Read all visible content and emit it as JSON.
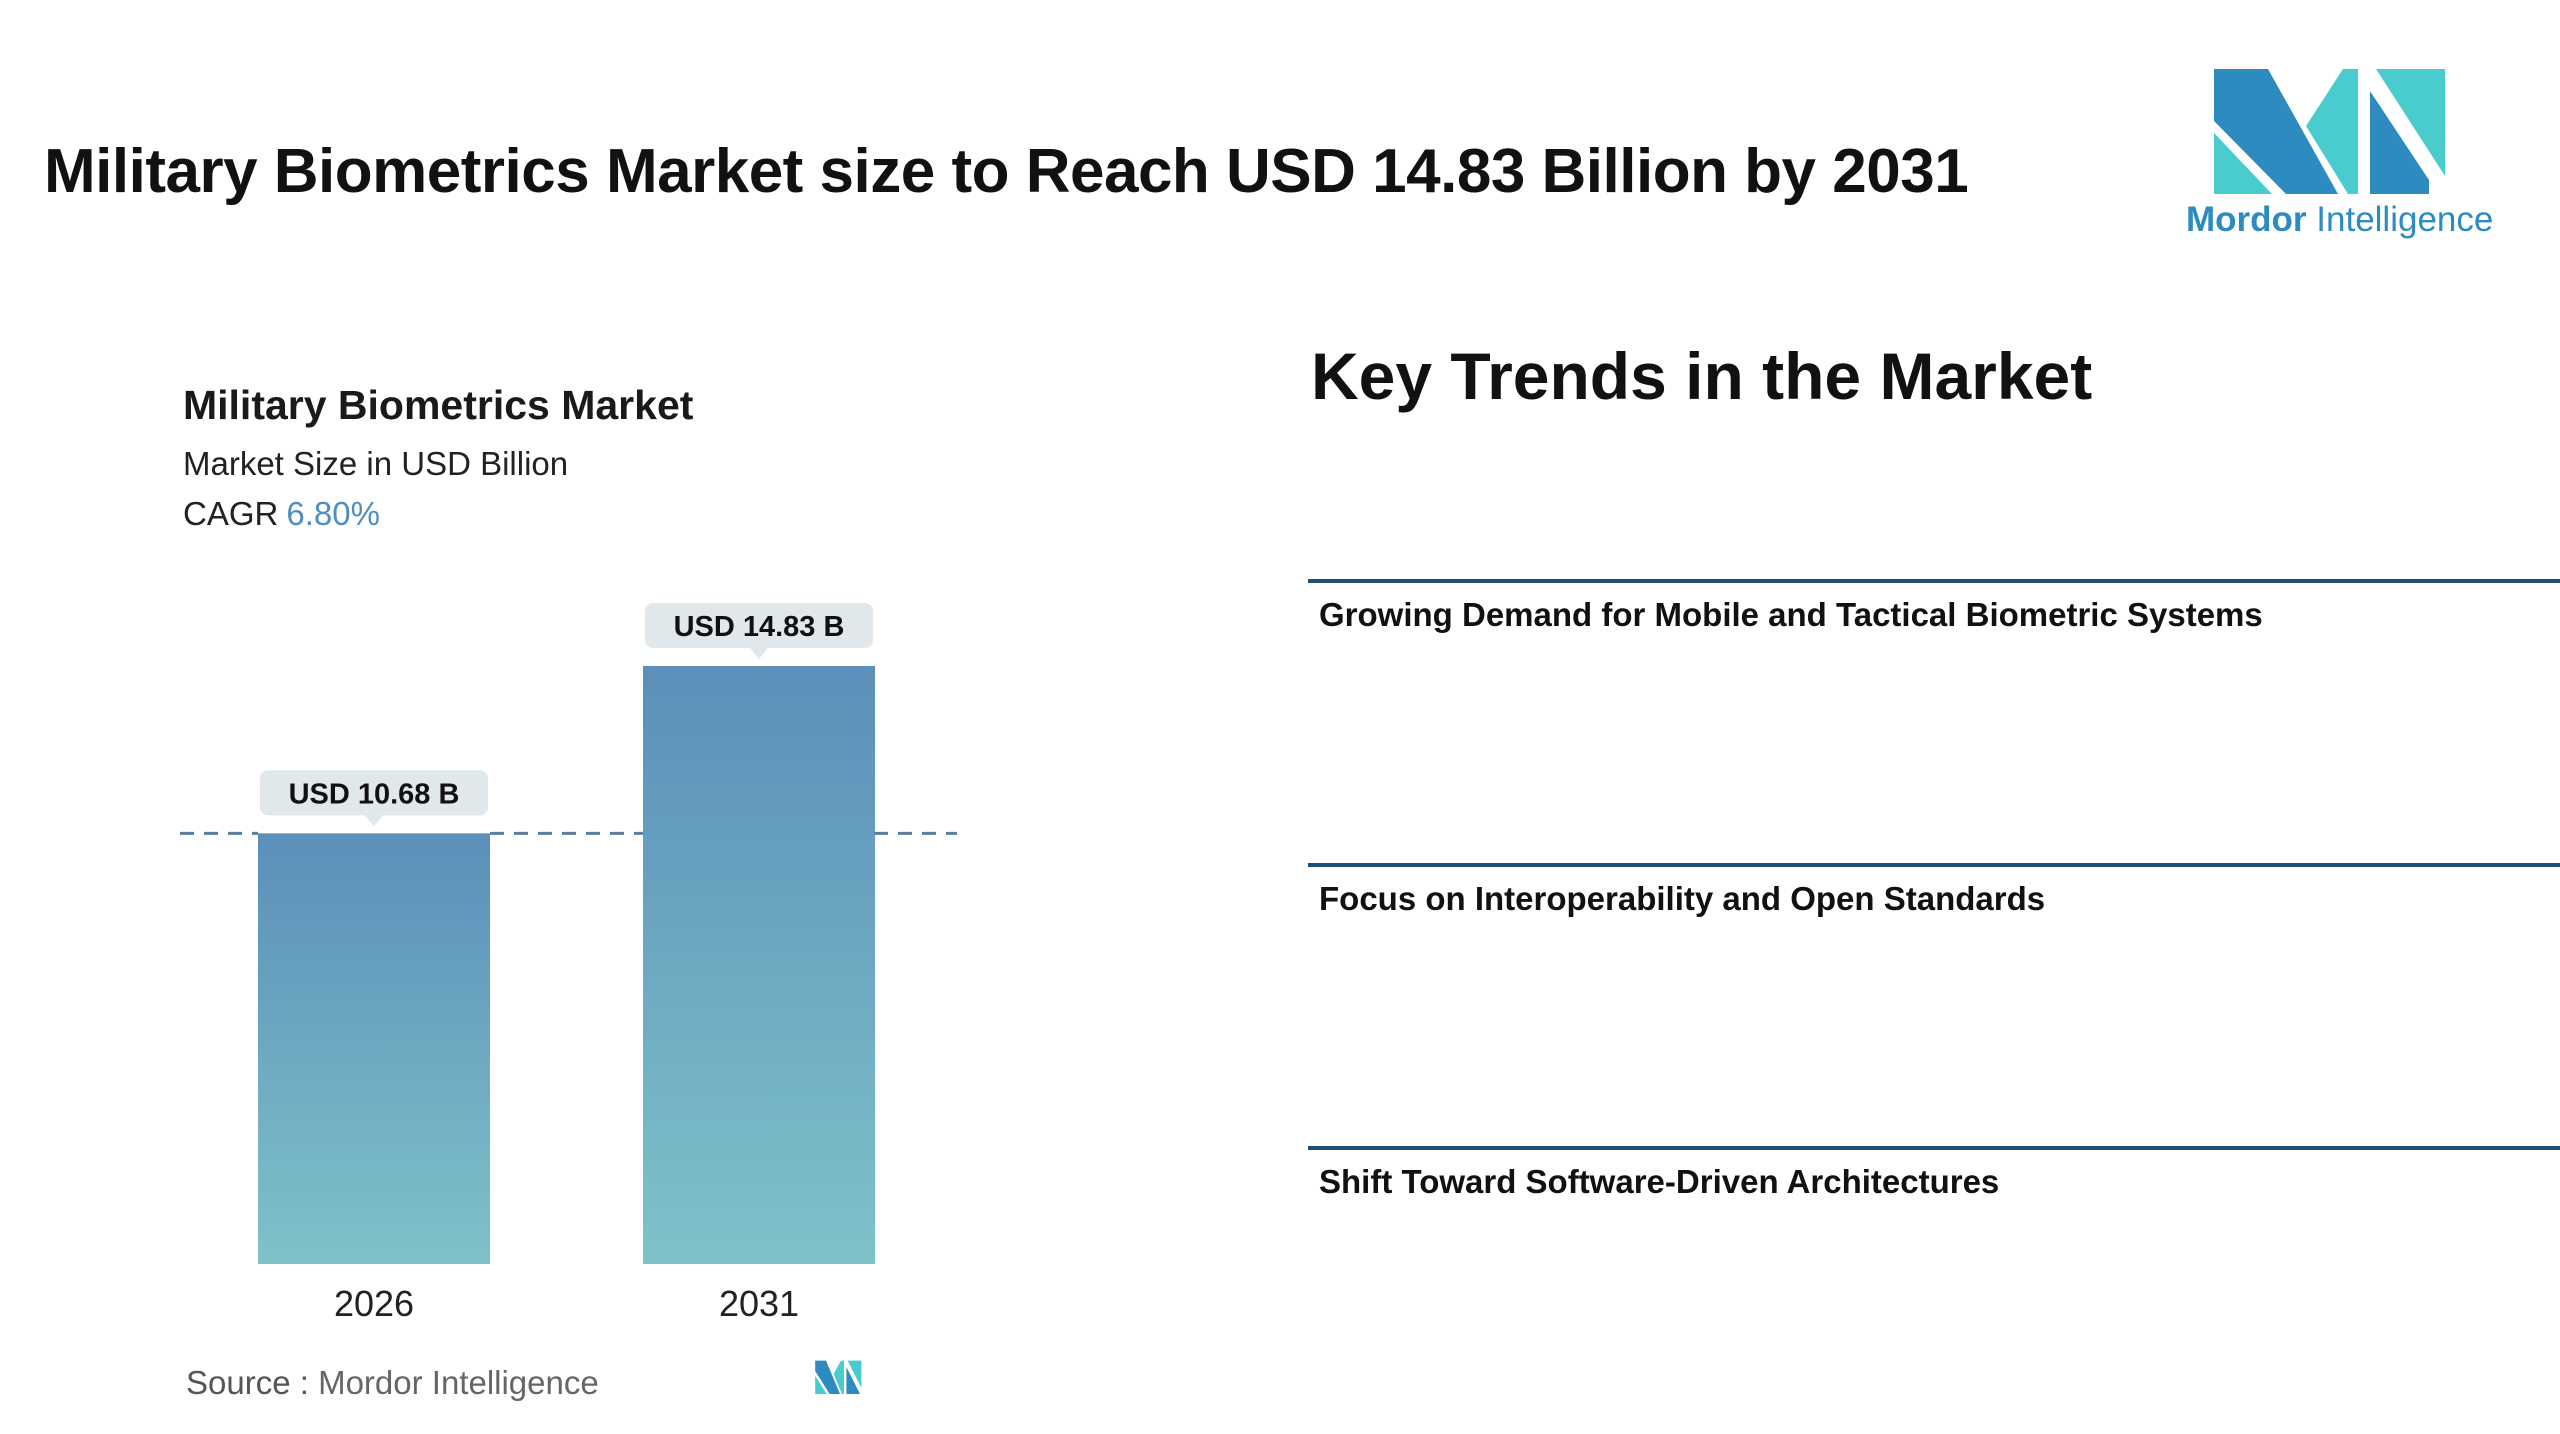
{
  "header": {
    "title": "Military Biometrics Market size to Reach USD 14.83 Billion by 2031"
  },
  "logo": {
    "word1": "Mordor",
    "word2": "Intelligence",
    "colors": {
      "dark": "#2d8bc0",
      "light": "#48cccd"
    }
  },
  "chart_header": {
    "title": "Military Biometrics Market",
    "subtitle": "Market Size in USD Billion",
    "cagr_label": "CAGR",
    "cagr_value": "6.80%"
  },
  "chart_data": {
    "type": "bar",
    "categories": [
      "2026",
      "2031"
    ],
    "values": [
      10.68,
      14.83
    ],
    "data_labels": [
      "USD 10.68 B",
      "USD 14.83 B"
    ],
    "ylabel": "Market Size in USD Billion",
    "ylim": [
      0,
      14.83
    ],
    "grid": false,
    "reference_line": 10.68,
    "bar_color_top": "#5b8fb9",
    "bar_color_bottom": "#7fc2c9"
  },
  "source": {
    "label": "Source :",
    "value": "Mordor Intelligence"
  },
  "trends": {
    "title": "Key Trends in the Market",
    "items": [
      "Growing Demand for Mobile and Tactical Biometric Systems",
      "Focus on Interoperability and Open Standards",
      "Shift Toward Software-Driven Architectures"
    ]
  }
}
